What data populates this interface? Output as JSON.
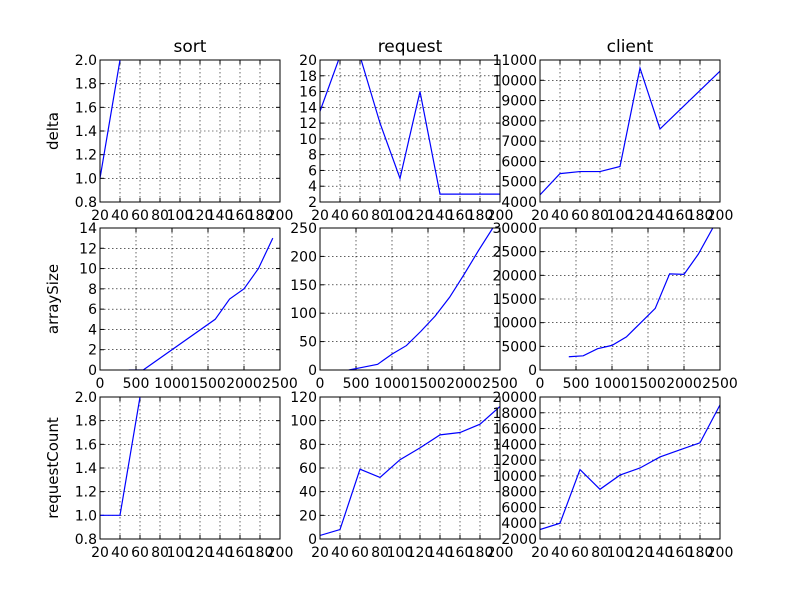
{
  "figure": {
    "line_color": "#0000ff",
    "grid": true,
    "columns": [
      "sort",
      "request",
      "client"
    ],
    "row_labels": [
      "delta",
      "arraySize",
      "requestCount"
    ]
  },
  "chart_data": [
    {
      "type": "line",
      "title": "sort",
      "xlabel": "",
      "ylabel": "delta",
      "xlim": [
        20,
        200
      ],
      "ylim": [
        0.8,
        2.0
      ],
      "xticks": [
        20,
        40,
        60,
        80,
        100,
        120,
        140,
        160,
        180,
        200
      ],
      "yticks": [
        0.8,
        1.0,
        1.2,
        1.4,
        1.6,
        1.8,
        2.0
      ],
      "ytick_labels": [
        "0.8",
        "1.0",
        "1.2",
        "1.4",
        "1.6",
        "1.8",
        "2.0"
      ],
      "series": [
        {
          "x": [
            20,
            40
          ],
          "y": [
            1.0,
            2.0
          ]
        }
      ]
    },
    {
      "type": "line",
      "title": "request",
      "xlabel": "",
      "ylabel": "",
      "xlim": [
        20,
        200
      ],
      "ylim": [
        2,
        20
      ],
      "xticks": [
        20,
        40,
        60,
        80,
        100,
        120,
        140,
        160,
        180,
        200
      ],
      "yticks": [
        2,
        4,
        6,
        8,
        10,
        12,
        14,
        16,
        18,
        20
      ],
      "ytick_labels": [
        "2",
        "4",
        "6",
        "8",
        "10",
        "12",
        "14",
        "16",
        "18",
        "20"
      ],
      "series": [
        {
          "x": [
            20,
            40,
            60,
            80,
            100,
            120,
            140,
            160,
            180,
            200
          ],
          "y": [
            13.5,
            20.5,
            20.5,
            12,
            5,
            16,
            3,
            3,
            3,
            3
          ]
        }
      ]
    },
    {
      "type": "line",
      "title": "client",
      "xlabel": "",
      "ylabel": "",
      "xlim": [
        20,
        200
      ],
      "ylim": [
        4000,
        11000
      ],
      "xticks": [
        20,
        40,
        60,
        80,
        100,
        120,
        140,
        160,
        180,
        200
      ],
      "yticks": [
        4000,
        5000,
        6000,
        7000,
        8000,
        9000,
        10000,
        11000
      ],
      "ytick_labels": [
        "4000",
        "5000",
        "6000",
        "7000",
        "8000",
        "9000",
        "10000",
        "11000"
      ],
      "series": [
        {
          "x": [
            20,
            40,
            60,
            80,
            100,
            120,
            140,
            200
          ],
          "y": [
            4350,
            5400,
            5500,
            5500,
            5750,
            10600,
            7600,
            10450
          ]
        }
      ]
    },
    {
      "type": "line",
      "title": "",
      "xlabel": "",
      "ylabel": "arraySize",
      "xlim": [
        0,
        2500
      ],
      "ylim": [
        0,
        14
      ],
      "xticks": [
        0,
        500,
        1000,
        1500,
        2000,
        2500
      ],
      "yticks": [
        0,
        2,
        4,
        6,
        8,
        10,
        12,
        14
      ],
      "ytick_labels": [
        "0",
        "2",
        "4",
        "6",
        "8",
        "10",
        "12",
        "14"
      ],
      "series": [
        {
          "x": [
            400,
            600,
            1600,
            1800,
            2000,
            2200,
            2400
          ],
          "y": [
            0,
            0,
            5,
            7,
            8,
            10,
            13
          ]
        }
      ]
    },
    {
      "type": "line",
      "title": "",
      "xlabel": "",
      "ylabel": "",
      "xlim": [
        0,
        2500
      ],
      "ylim": [
        0,
        250
      ],
      "xticks": [
        0,
        500,
        1000,
        1500,
        2000,
        2500
      ],
      "yticks": [
        0,
        50,
        100,
        150,
        200,
        250
      ],
      "ytick_labels": [
        "0",
        "50",
        "100",
        "150",
        "200",
        "250"
      ],
      "series": [
        {
          "x": [
            400,
            600,
            800,
            1000,
            1200,
            1400,
            1600,
            1800,
            2000,
            2200,
            2400
          ],
          "y": [
            0,
            5,
            10,
            28,
            43,
            68,
            95,
            128,
            168,
            210,
            250
          ]
        }
      ]
    },
    {
      "type": "line",
      "title": "",
      "xlabel": "",
      "ylabel": "",
      "xlim": [
        0,
        2500
      ],
      "ylim": [
        0,
        30000
      ],
      "xticks": [
        0,
        500,
        1000,
        1500,
        2000,
        2500
      ],
      "yticks": [
        0,
        5000,
        10000,
        15000,
        20000,
        25000,
        30000
      ],
      "ytick_labels": [
        "0",
        "5000",
        "10000",
        "15000",
        "20000",
        "25000",
        "30000"
      ],
      "series": [
        {
          "x": [
            400,
            600,
            800,
            1000,
            1200,
            1400,
            1600,
            1800,
            2000,
            2200,
            2400
          ],
          "y": [
            2800,
            3000,
            4500,
            5200,
            7000,
            10000,
            13000,
            20300,
            20200,
            24500,
            30000
          ]
        }
      ]
    },
    {
      "type": "line",
      "title": "",
      "xlabel": "",
      "ylabel": "requestCount",
      "xlim": [
        20,
        200
      ],
      "ylim": [
        0.8,
        2.0
      ],
      "xticks": [
        20,
        40,
        60,
        80,
        100,
        120,
        140,
        160,
        180,
        200
      ],
      "yticks": [
        0.8,
        1.0,
        1.2,
        1.4,
        1.6,
        1.8,
        2.0
      ],
      "ytick_labels": [
        "0.8",
        "1.0",
        "1.2",
        "1.4",
        "1.6",
        "1.8",
        "2.0"
      ],
      "series": [
        {
          "x": [
            20,
            40,
            60
          ],
          "y": [
            1.0,
            1.0,
            2.0
          ]
        }
      ]
    },
    {
      "type": "line",
      "title": "",
      "xlabel": "",
      "ylabel": "",
      "xlim": [
        20,
        200
      ],
      "ylim": [
        0,
        120
      ],
      "xticks": [
        20,
        40,
        60,
        80,
        100,
        120,
        140,
        160,
        180,
        200
      ],
      "yticks": [
        0,
        20,
        40,
        60,
        80,
        100,
        120
      ],
      "ytick_labels": [
        "0",
        "20",
        "40",
        "60",
        "80",
        "100",
        "120"
      ],
      "series": [
        {
          "x": [
            20,
            40,
            60,
            80,
            100,
            120,
            140,
            160,
            180,
            200
          ],
          "y": [
            3,
            8,
            59,
            52,
            67,
            77,
            88,
            90,
            97,
            112
          ]
        }
      ]
    },
    {
      "type": "line",
      "title": "",
      "xlabel": "",
      "ylabel": "",
      "xlim": [
        20,
        200
      ],
      "ylim": [
        2000,
        20000
      ],
      "xticks": [
        20,
        40,
        60,
        80,
        100,
        120,
        140,
        160,
        180,
        200
      ],
      "yticks": [
        2000,
        4000,
        6000,
        8000,
        10000,
        12000,
        14000,
        16000,
        18000,
        20000
      ],
      "ytick_labels": [
        "2000",
        "4000",
        "6000",
        "8000",
        "10000",
        "12000",
        "14000",
        "16000",
        "18000",
        "20000"
      ],
      "series": [
        {
          "x": [
            20,
            40,
            60,
            80,
            100,
            120,
            140,
            160,
            180,
            200
          ],
          "y": [
            3200,
            4000,
            10800,
            8300,
            10100,
            11000,
            12400,
            13300,
            14200,
            19000
          ]
        }
      ]
    }
  ]
}
